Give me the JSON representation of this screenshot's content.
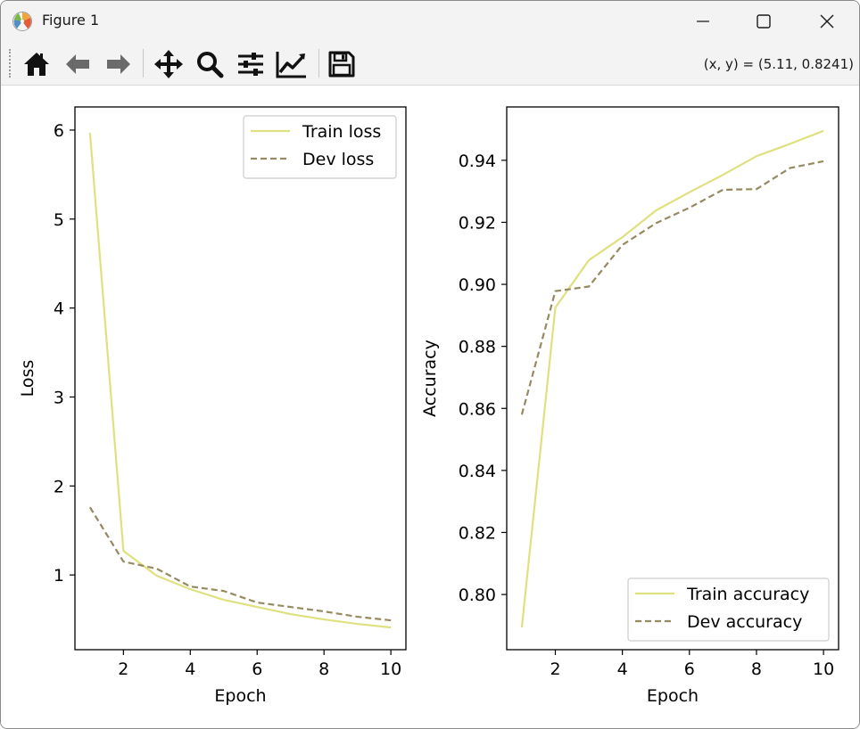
{
  "window": {
    "title": "Figure 1",
    "app_icon": "matplotlib-logo-icon",
    "controls": [
      "minimize-icon",
      "maximize-icon",
      "close-icon"
    ]
  },
  "toolbar": {
    "buttons": [
      "home-icon",
      "back-arrow-icon",
      "forward-arrow-icon",
      "pan-move-icon",
      "zoom-magnifier-icon",
      "configure-subplots-icon",
      "edit-axis-icon",
      "save-floppy-icon"
    ],
    "coords_text": "(x, y) = (5.11, 0.8241)"
  },
  "colors": {
    "train": "#dfe07f",
    "dev": "#958a60"
  },
  "chart_data": [
    {
      "type": "line",
      "xlabel": "Epoch",
      "ylabel": "Loss",
      "xlim": [
        0.55,
        10.45
      ],
      "ylim": [
        0.16,
        6.26
      ],
      "xticks": [
        2,
        4,
        6,
        8,
        10
      ],
      "yticks": [
        1,
        2,
        3,
        4,
        5,
        6
      ],
      "x": [
        1,
        2,
        3,
        4,
        5,
        6,
        7,
        8,
        9,
        10
      ],
      "series": [
        {
          "name": "Train loss",
          "style": "solid",
          "values": [
            5.97,
            1.27,
            0.99,
            0.84,
            0.72,
            0.64,
            0.56,
            0.5,
            0.45,
            0.41
          ]
        },
        {
          "name": "Dev loss",
          "style": "dashed",
          "values": [
            1.76,
            1.15,
            1.07,
            0.87,
            0.82,
            0.69,
            0.64,
            0.59,
            0.53,
            0.49
          ]
        }
      ],
      "legend": "upper right",
      "grid": false
    },
    {
      "type": "line",
      "xlabel": "Epoch",
      "ylabel": "Accuracy",
      "xlim": [
        0.55,
        10.45
      ],
      "ylim": [
        0.7822,
        0.9572
      ],
      "xticks": [
        2,
        4,
        6,
        8,
        10
      ],
      "yticks": [
        0.8,
        0.82,
        0.84,
        0.86,
        0.88,
        0.9,
        0.92,
        0.94
      ],
      "ytick_labels": [
        "0.80",
        "0.82",
        "0.84",
        "0.86",
        "0.88",
        "0.90",
        "0.92",
        "0.94"
      ],
      "x": [
        1,
        2,
        3,
        4,
        5,
        6,
        7,
        8,
        9,
        10
      ],
      "series": [
        {
          "name": "Train accuracy",
          "style": "solid",
          "values": [
            0.7894,
            0.8925,
            0.9078,
            0.9152,
            0.9238,
            0.9297,
            0.9353,
            0.9413,
            0.9453,
            0.9495
          ]
        },
        {
          "name": "Dev accuracy",
          "style": "dashed",
          "values": [
            0.858,
            0.8978,
            0.8993,
            0.9127,
            0.9197,
            0.9247,
            0.9305,
            0.9307,
            0.9375,
            0.9397
          ]
        }
      ],
      "legend": "lower right",
      "grid": false
    }
  ]
}
